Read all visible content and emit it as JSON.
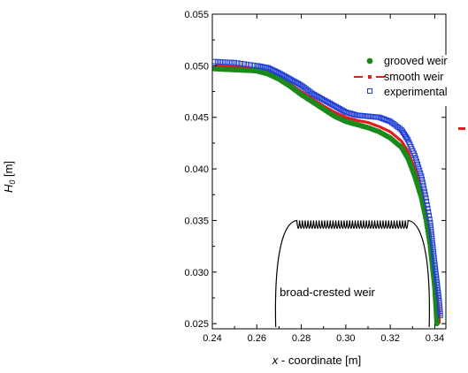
{
  "chart_data": {
    "type": "scatter",
    "xlabel_prefix": "x",
    "xlabel_suffix": " - coordinate [m]",
    "ylabel_main": "H",
    "ylabel_sub": "0",
    "ylabel_unit": " [m]",
    "xlim": [
      0.24,
      0.345
    ],
    "ylim": [
      0.0245,
      0.055
    ],
    "xticks": [
      "0.24",
      "0.26",
      "0.28",
      "0.30",
      "0.32",
      "0.34"
    ],
    "xtick_values": [
      0.24,
      0.26,
      0.28,
      0.3,
      0.32,
      0.34
    ],
    "yticks": [
      "0.025",
      "0.030",
      "0.035",
      "0.040",
      "0.045",
      "0.050",
      "0.055"
    ],
    "ytick_values": [
      0.025,
      0.03,
      0.035,
      0.04,
      0.045,
      0.05,
      0.055
    ],
    "legend_position": "top-right",
    "annotation": "broad-crested weir",
    "series": [
      {
        "name": "grooved weir",
        "marker": "filled-circle",
        "color": "#1a8a1a",
        "x": [
          0.241,
          0.25,
          0.26,
          0.265,
          0.27,
          0.275,
          0.28,
          0.285,
          0.29,
          0.295,
          0.3,
          0.305,
          0.31,
          0.315,
          0.32,
          0.325,
          0.328,
          0.331,
          0.334,
          0.336,
          0.338,
          0.339,
          0.34,
          0.3405,
          0.341
        ],
        "y": [
          0.0497,
          0.0496,
          0.0495,
          0.0492,
          0.0487,
          0.048,
          0.0472,
          0.0465,
          0.0458,
          0.0451,
          0.0446,
          0.0443,
          0.044,
          0.0436,
          0.043,
          0.0421,
          0.041,
          0.0393,
          0.0372,
          0.0352,
          0.0325,
          0.0305,
          0.0285,
          0.0268,
          0.025
        ]
      },
      {
        "name": "smooth weir",
        "marker": "dash-dot-line",
        "color": "#e41a1c",
        "x": [
          0.241,
          0.25,
          0.26,
          0.265,
          0.27,
          0.275,
          0.28,
          0.285,
          0.29,
          0.295,
          0.3,
          0.305,
          0.31,
          0.315,
          0.32,
          0.325,
          0.328,
          0.331,
          0.334,
          0.336,
          0.338,
          0.339,
          0.34,
          0.341,
          0.342,
          0.342
        ],
        "y": [
          0.05,
          0.0499,
          0.0497,
          0.0494,
          0.0489,
          0.0482,
          0.0475,
          0.0468,
          0.0461,
          0.0455,
          0.045,
          0.0447,
          0.0445,
          0.0441,
          0.0436,
          0.0427,
          0.0417,
          0.04,
          0.038,
          0.036,
          0.0335,
          0.0315,
          0.0295,
          0.0278,
          0.026,
          0.025
        ]
      },
      {
        "name": "experimental",
        "marker": "open-square",
        "color": "#1f3fd6",
        "x": [
          0.241,
          0.25,
          0.26,
          0.265,
          0.27,
          0.275,
          0.28,
          0.285,
          0.29,
          0.295,
          0.3,
          0.305,
          0.31,
          0.315,
          0.32,
          0.325,
          0.328,
          0.331,
          0.334,
          0.336,
          0.338,
          0.339,
          0.34,
          0.341,
          0.342,
          0.3425
        ],
        "y": [
          0.0504,
          0.0503,
          0.05,
          0.0498,
          0.0493,
          0.0487,
          0.0481,
          0.0473,
          0.0467,
          0.0461,
          0.0455,
          0.0452,
          0.0451,
          0.045,
          0.0446,
          0.0438,
          0.0428,
          0.0413,
          0.0393,
          0.0372,
          0.0348,
          0.0328,
          0.0308,
          0.029,
          0.0272,
          0.0258
        ]
      }
    ],
    "weir_profile": {
      "left_x": 0.2685,
      "right_x": 0.3375,
      "base_y": 0.0245,
      "crest_y": 0.035,
      "groove_start_x": 0.278,
      "groove_end_x": 0.328,
      "groove_count": 40,
      "groove_depth": 0.0007,
      "color": "#000000"
    }
  }
}
